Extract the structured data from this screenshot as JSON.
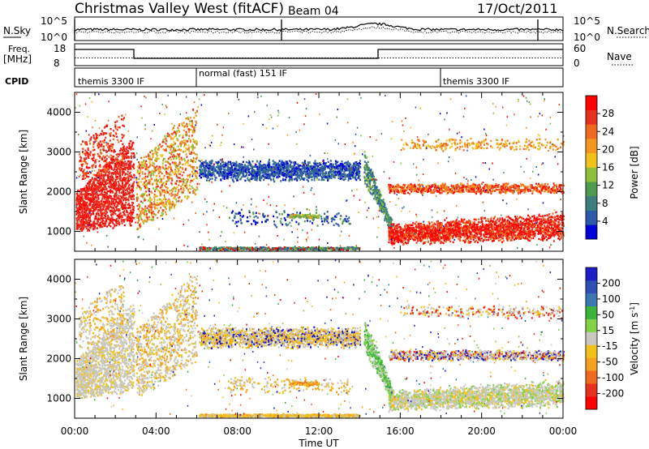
{
  "header": {
    "title": "Christmas Valley West (fitACF)",
    "beam": "Beam 04",
    "date": "17/Oct/2011"
  },
  "noise_panel": {
    "left_label": "N.Sky",
    "left_ticks": [
      "10^5",
      "10^0"
    ],
    "right_ticks": [
      "10^5",
      "10^0"
    ],
    "right_label": "N.Search"
  },
  "freq_panel": {
    "left_label_line1": "Freq.",
    "left_label_line2": "[MHz]",
    "left_ticks": [
      "18",
      "8"
    ],
    "right_ticks": [
      "60",
      "0"
    ],
    "right_label": "Nave"
  },
  "cpid_panel": {
    "label": "CPID",
    "segments": [
      {
        "text": "themis 3300 IF",
        "start": 0
      },
      {
        "text": "normal (fast) 151 IF",
        "start": 6.0
      },
      {
        "text": "themis 3300 IF",
        "start": 18.0
      }
    ]
  },
  "colors": {
    "power_scale": [
      "#0000d8",
      "#2b5aa8",
      "#3a7e7e",
      "#4e9a4e",
      "#8fc03a",
      "#f0c21a",
      "#f5961e",
      "#f06a1e",
      "#e83020",
      "#ff0000"
    ],
    "velocity_scale": [
      "#1c1cc8",
      "#2e4fb4",
      "#3c78b0",
      "#3cb43c",
      "#82d246",
      "#c8c8c0",
      "#f0c21a",
      "#f5a01e",
      "#f06a1e",
      "#e83020",
      "#ff0000"
    ]
  },
  "chart_data": {
    "type": "heatmap",
    "xlabel": "Time UT",
    "x_ticks": [
      "00:00",
      "04:00",
      "08:00",
      "12:00",
      "16:00",
      "20:00",
      "00:00"
    ],
    "xlim": [
      0,
      24
    ],
    "panels": [
      {
        "name": "power",
        "ylabel": "Slant Range [km]",
        "y_ticks": [
          "1000",
          "2000",
          "3000",
          "4000"
        ],
        "ylim": [
          500,
          4500
        ],
        "colorbar_label": "Power [dB]",
        "colorbar_ticks": [
          "4",
          "8",
          "12",
          "16",
          "20",
          "24",
          "28"
        ]
      },
      {
        "name": "velocity",
        "ylabel": "Slant Range [km]",
        "y_ticks": [
          "1000",
          "2000",
          "3000",
          "4000"
        ],
        "ylim": [
          500,
          4500
        ],
        "colorbar_label": "Velocity [m s",
        "colorbar_label_sup": "-1",
        "colorbar_label_end": "]",
        "colorbar_ticks": [
          "200",
          "100",
          "50",
          "15",
          "-15",
          "-50",
          "-100",
          "-200"
        ]
      }
    ]
  }
}
